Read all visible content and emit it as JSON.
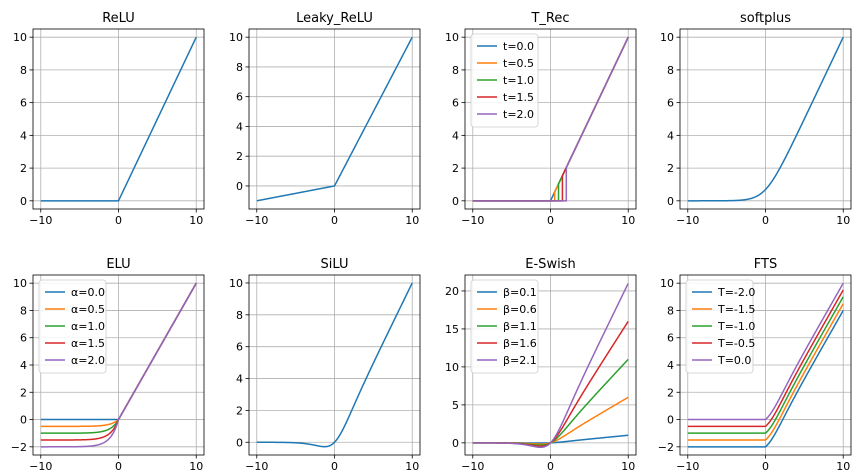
{
  "chart_data": [
    {
      "type": "line",
      "title": "ReLU",
      "function": "relu",
      "x_domain": [
        -10,
        10
      ],
      "xlim": [
        -11,
        11
      ],
      "ylim": [
        -0.5,
        10.5
      ],
      "xticks": [
        -10,
        0,
        10
      ],
      "yticks": [
        0,
        2,
        4,
        6,
        8,
        10
      ],
      "grid": true,
      "legend": null,
      "series": [
        {
          "param": null,
          "color": "#1f77b4"
        }
      ]
    },
    {
      "type": "line",
      "title": "Leaky_ReLU",
      "function": "leaky_relu",
      "slope": 0.1,
      "x_domain": [
        -10,
        10
      ],
      "xlim": [
        -11,
        11
      ],
      "ylim": [
        -1.55,
        10.55
      ],
      "xticks": [
        -10,
        0,
        10
      ],
      "yticks": [
        0,
        2,
        4,
        6,
        8,
        10
      ],
      "grid": true,
      "legend": null,
      "series": [
        {
          "param": null,
          "color": "#1f77b4"
        }
      ]
    },
    {
      "type": "line",
      "title": "T_Rec",
      "function": "t_rec",
      "x_domain": [
        -10,
        10
      ],
      "xlim": [
        -11,
        11
      ],
      "ylim": [
        -0.5,
        10.5
      ],
      "xticks": [
        -10,
        0,
        10
      ],
      "yticks": [
        0,
        2,
        4,
        6,
        8,
        10
      ],
      "grid": true,
      "legend": "upper left",
      "series": [
        {
          "name": "t=0.0",
          "param": 0.0,
          "color": "#1f77b4"
        },
        {
          "name": "t=0.5",
          "param": 0.5,
          "color": "#ff7f0e"
        },
        {
          "name": "t=1.0",
          "param": 1.0,
          "color": "#2ca02c"
        },
        {
          "name": "t=1.5",
          "param": 1.5,
          "color": "#d62728"
        },
        {
          "name": "t=2.0",
          "param": 2.0,
          "color": "#9467bd"
        }
      ]
    },
    {
      "type": "line",
      "title": "softplus",
      "function": "softplus",
      "x_domain": [
        -10,
        10
      ],
      "xlim": [
        -11,
        11
      ],
      "ylim": [
        -0.5,
        10.5
      ],
      "xticks": [
        -10,
        0,
        10
      ],
      "yticks": [
        0,
        2,
        4,
        6,
        8,
        10
      ],
      "grid": true,
      "legend": null,
      "series": [
        {
          "param": null,
          "color": "#1f77b4"
        }
      ]
    },
    {
      "type": "line",
      "title": "ELU",
      "function": "elu",
      "x_domain": [
        -10,
        10
      ],
      "xlim": [
        -11,
        11
      ],
      "ylim": [
        -2.6,
        10.6
      ],
      "xticks": [
        -10,
        0,
        10
      ],
      "yticks": [
        -2,
        0,
        2,
        4,
        6,
        8,
        10
      ],
      "grid": true,
      "legend": "upper left",
      "series": [
        {
          "name": "α=0.0",
          "param": 0.0,
          "color": "#1f77b4"
        },
        {
          "name": "α=0.5",
          "param": 0.5,
          "color": "#ff7f0e"
        },
        {
          "name": "α=1.0",
          "param": 1.0,
          "color": "#2ca02c"
        },
        {
          "name": "α=1.5",
          "param": 1.5,
          "color": "#d62728"
        },
        {
          "name": "α=2.0",
          "param": 2.0,
          "color": "#9467bd"
        }
      ]
    },
    {
      "type": "line",
      "title": "SiLU",
      "function": "silu",
      "x_domain": [
        -10,
        10
      ],
      "xlim": [
        -11,
        11
      ],
      "ylim": [
        -0.8,
        10.5
      ],
      "xticks": [
        -10,
        0,
        10
      ],
      "yticks": [
        0,
        2,
        4,
        6,
        8,
        10
      ],
      "grid": true,
      "legend": null,
      "series": [
        {
          "param": null,
          "color": "#1f77b4"
        }
      ]
    },
    {
      "type": "line",
      "title": "E-Swish",
      "function": "eswish",
      "x_domain": [
        -10,
        10
      ],
      "xlim": [
        -11,
        11
      ],
      "ylim": [
        -1.6,
        22.1
      ],
      "xticks": [
        -10,
        0,
        10
      ],
      "yticks": [
        0,
        5,
        10,
        15,
        20
      ],
      "grid": true,
      "legend": "upper left",
      "series": [
        {
          "name": "β=0.1",
          "param": 0.1,
          "color": "#1f77b4"
        },
        {
          "name": "β=0.6",
          "param": 0.6,
          "color": "#ff7f0e"
        },
        {
          "name": "β=1.1",
          "param": 1.1,
          "color": "#2ca02c"
        },
        {
          "name": "β=1.6",
          "param": 1.6,
          "color": "#d62728"
        },
        {
          "name": "β=2.1",
          "param": 2.1,
          "color": "#9467bd"
        }
      ]
    },
    {
      "type": "line",
      "title": "FTS",
      "function": "fts",
      "x_domain": [
        -10,
        10
      ],
      "xlim": [
        -11,
        11
      ],
      "ylim": [
        -2.6,
        10.6
      ],
      "xticks": [
        -10,
        0,
        10
      ],
      "yticks": [
        -2,
        0,
        2,
        4,
        6,
        8,
        10
      ],
      "grid": true,
      "legend": "upper left",
      "series": [
        {
          "name": "T=-2.0",
          "param": -2.0,
          "color": "#1f77b4"
        },
        {
          "name": "T=-1.5",
          "param": -1.5,
          "color": "#ff7f0e"
        },
        {
          "name": "T=-1.0",
          "param": -1.0,
          "color": "#2ca02c"
        },
        {
          "name": "T=-0.5",
          "param": -0.5,
          "color": "#d62728"
        },
        {
          "name": "T=0.0",
          "param": 0.0,
          "color": "#9467bd"
        }
      ]
    }
  ]
}
